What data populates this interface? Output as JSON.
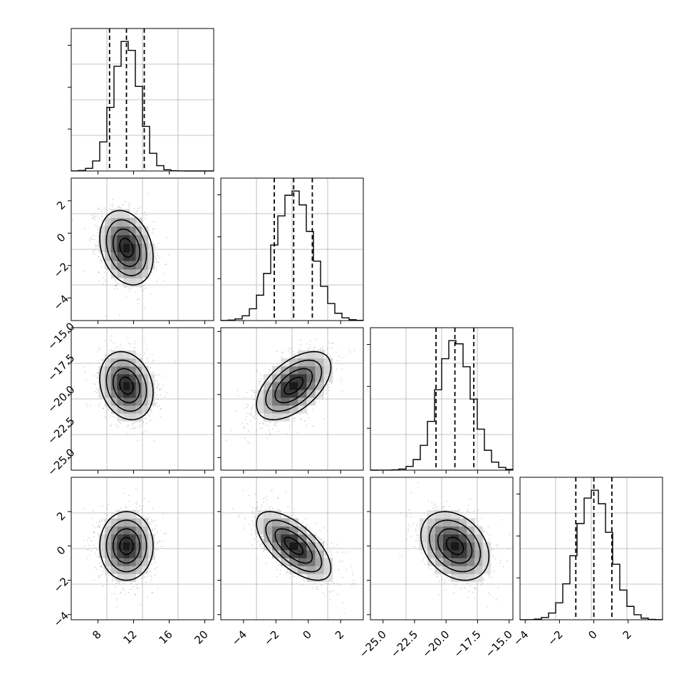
{
  "chart_data": {
    "type": "corner",
    "parameters": [
      {
        "range": [
          5,
          21
        ],
        "ticks": [
          8,
          12,
          16,
          20
        ],
        "tick_labels": [
          "8",
          "12",
          "16",
          "20"
        ],
        "mean": 11.2,
        "std": 1.5,
        "quantiles": [
          9.3,
          11.2,
          13.2
        ]
      },
      {
        "range": [
          -5.4,
          3.4
        ],
        "ticks": [
          -4,
          -2,
          0,
          2
        ],
        "tick_labels": [
          "−4",
          "−2",
          "0",
          "2"
        ],
        "mean": -0.9,
        "std": 1.15,
        "quantiles": [
          -2.1,
          -0.9,
          0.25
        ]
      },
      {
        "range": [
          -26,
          -14.7
        ],
        "ticks": [
          -25,
          -22.5,
          -20,
          -17.5,
          -15
        ],
        "tick_labels": [
          "−25.0",
          "−22.5",
          "−20.0",
          "−17.5",
          "−15.0"
        ],
        "mean": -19.3,
        "std": 1.35,
        "quantiles": [
          -20.8,
          -19.3,
          -17.8
        ]
      },
      {
        "range": [
          -4.3,
          4.0
        ],
        "ticks": [
          -4,
          -2,
          0,
          2
        ],
        "tick_labels": [
          "−4",
          "−2",
          "0",
          "2"
        ],
        "mean": 0.0,
        "std": 1.0,
        "quantiles": [
          -1.05,
          0.0,
          1.05
        ]
      }
    ],
    "correlations": {
      "1-0": -0.25,
      "2-0": -0.2,
      "2-1": 0.55,
      "3-0": 0.0,
      "3-1": -0.65,
      "3-2": -0.3
    },
    "diag_bins": 20,
    "grid": true,
    "scatter_color": "#8a8a8a",
    "contour_color": "#000000"
  }
}
